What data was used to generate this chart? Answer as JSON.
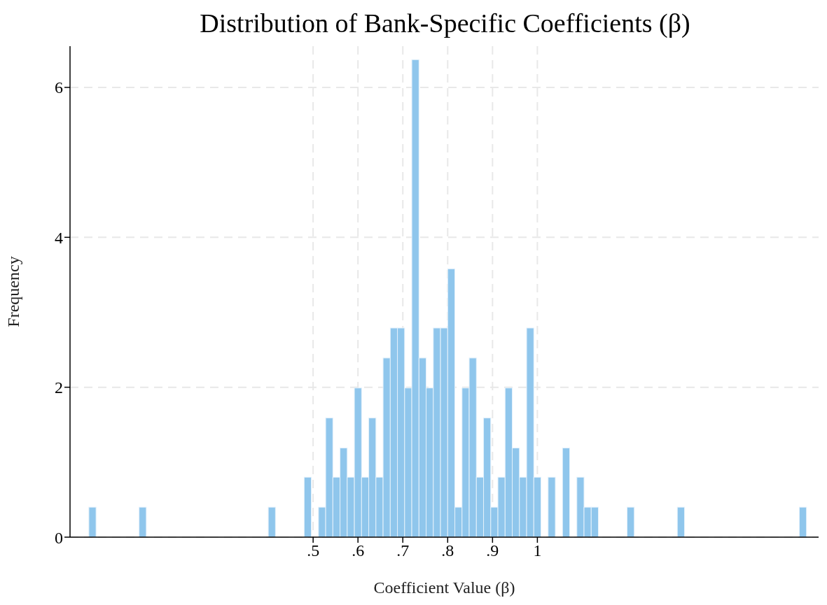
{
  "chart_data": {
    "type": "histogram",
    "title": "Distribution of Bank-Specific Coefficients (β)",
    "xlabel": "Coefficient Value (β)",
    "ylabel": "Frequency",
    "color": "#8fc6ec",
    "bins": [
      0,
      0.016,
      0.032,
      0.048,
      0.064,
      0.08,
      0.096,
      0.112,
      0.128,
      0.144,
      0.16,
      0.176,
      0.192,
      0.208,
      0.224,
      0.24,
      0.256,
      0.272,
      0.288,
      0.304,
      0.32,
      0.336,
      0.352,
      0.368,
      0.384,
      0.4,
      0.416,
      0.432,
      0.448,
      0.464,
      0.48,
      0.496,
      0.512,
      0.528,
      0.544,
      0.56,
      0.576,
      0.592,
      0.608,
      0.624,
      0.64,
      0.656,
      0.672,
      0.688,
      0.704,
      0.72,
      0.736,
      0.752,
      0.768,
      0.784,
      0.8,
      0.816,
      0.832,
      0.848,
      0.864,
      0.88,
      0.896,
      0.912,
      0.928,
      0.944,
      0.96,
      0.976,
      0.992,
      1.008,
      1.024,
      1.04,
      1.056,
      1.072,
      1.088,
      1.104,
      1.12,
      1.136,
      1.152,
      1.168,
      1.184,
      1.2,
      1.216,
      1.232,
      1.248,
      1.264,
      1.28,
      1.296,
      1.312,
      1.328,
      1.344,
      1.36,
      1.376,
      1.392,
      1.408,
      1.424,
      1.44,
      1.456,
      1.472,
      1.488,
      1.504,
      1.52,
      1.536,
      1.552,
      1.568,
      1.584,
      1.6
    ],
    "values": [
      0.4,
      0,
      0,
      0,
      0,
      0,
      0,
      0.4,
      0,
      0,
      0,
      0,
      0,
      0,
      0,
      0,
      0,
      0,
      0,
      0,
      0,
      0,
      0,
      0,
      0,
      0.4,
      0,
      0,
      0,
      0,
      0.8,
      0,
      0.4,
      1.59,
      0.8,
      1.19,
      0.8,
      1.99,
      0.8,
      1.59,
      0.8,
      2.39,
      2.79,
      2.79,
      1.99,
      6.37,
      2.39,
      1.99,
      2.79,
      2.79,
      3.58,
      0.4,
      1.99,
      2.39,
      0.8,
      1.59,
      0.4,
      0.8,
      1.99,
      1.19,
      0.8,
      2.79,
      0.8,
      0,
      0.8,
      0,
      1.19,
      0,
      0.8,
      0.4,
      0.4,
      0,
      0,
      0,
      0,
      0.4,
      0,
      0,
      0,
      0,
      0,
      0,
      0.4,
      0,
      0,
      0,
      0,
      0,
      0,
      0,
      0,
      0,
      0,
      0,
      0,
      0,
      0,
      0,
      0,
      0.4
    ],
    "xlim": [
      -0.042,
      1.627
    ],
    "xticks": [
      {
        "value": 0.5,
        "label": ".5"
      },
      {
        "value": 0.6,
        "label": ".6"
      },
      {
        "value": 0.7,
        "label": ".7"
      },
      {
        "value": 0.8,
        "label": ".8"
      },
      {
        "value": 0.9,
        "label": ".9"
      },
      {
        "value": 1,
        "label": "1"
      }
    ],
    "ylim": [
      0,
      6.55
    ],
    "yticks": [
      0,
      2,
      4,
      6
    ],
    "grid": true
  }
}
